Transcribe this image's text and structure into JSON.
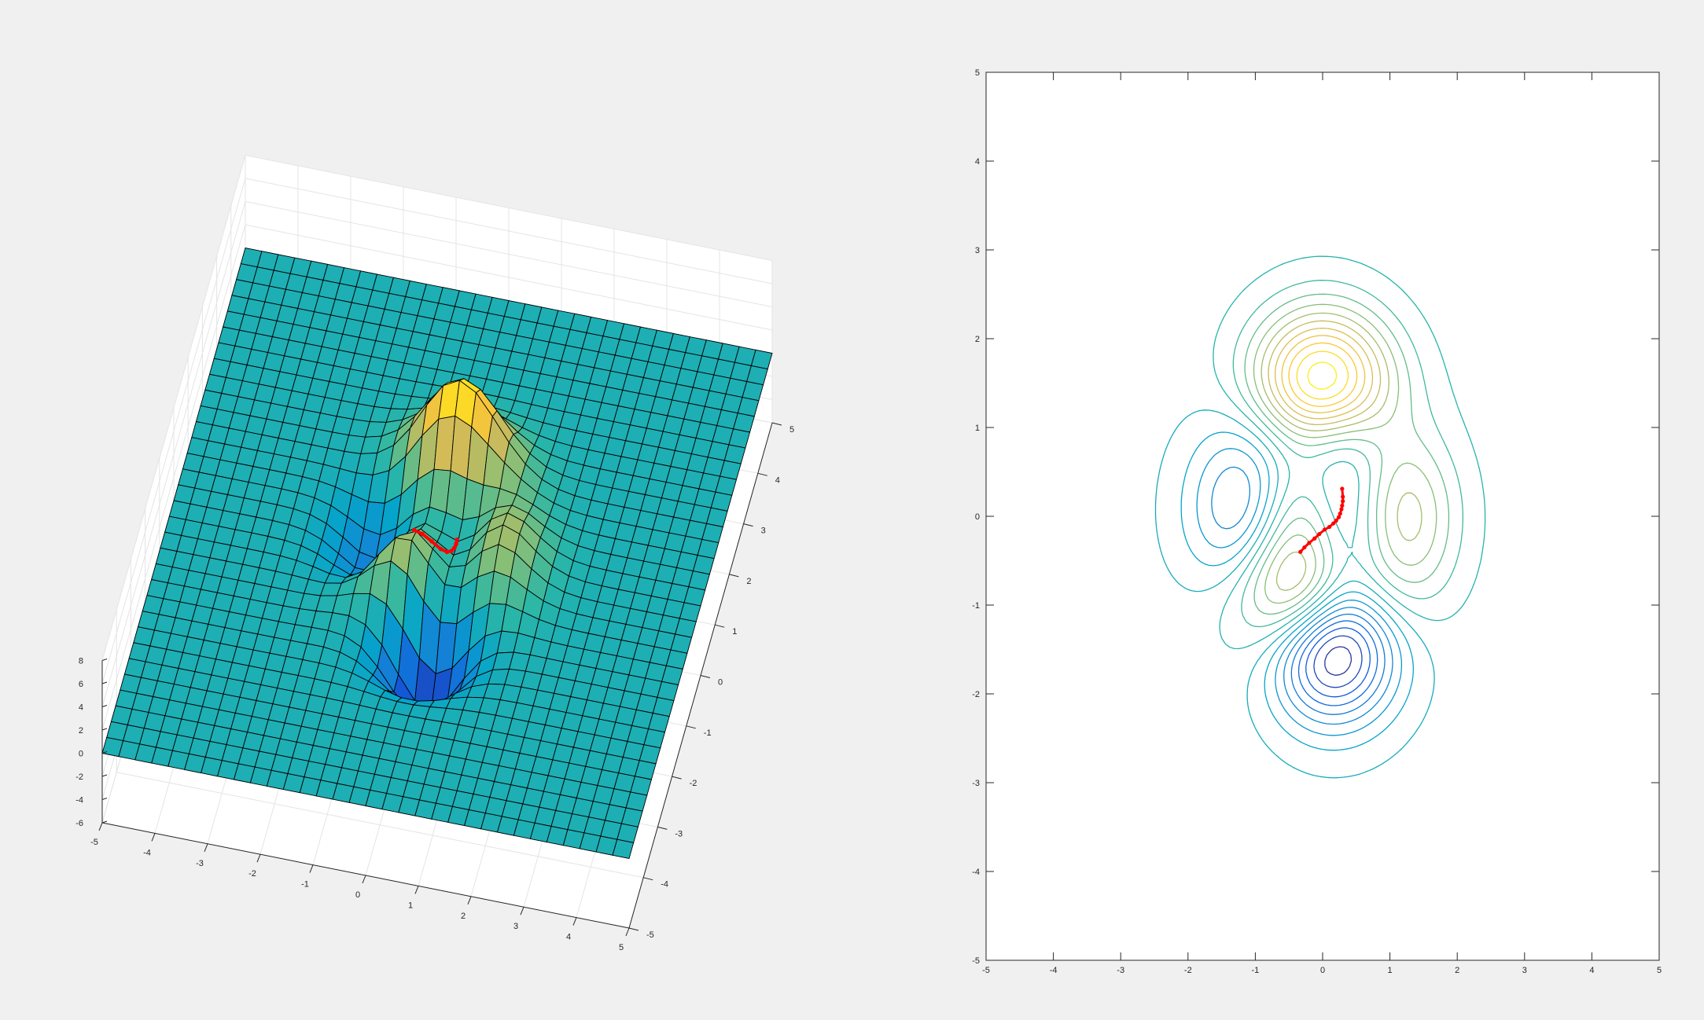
{
  "figure": {
    "background": "#f0f0f0"
  },
  "chart_data": [
    {
      "type": "surface",
      "title": "",
      "xlabel": "",
      "ylabel": "",
      "zlabel": "",
      "xlim": [
        -5,
        5
      ],
      "ylim": [
        -5,
        5
      ],
      "zlim": [
        -6,
        8
      ],
      "x_ticks": [
        -5,
        -4,
        -3,
        -2,
        -1,
        0,
        1,
        2,
        3,
        4,
        5
      ],
      "y_ticks": [
        -5,
        -4,
        -3,
        -2,
        -1,
        0,
        1,
        2,
        3,
        4,
        5
      ],
      "z_ticks": [
        -6,
        -4,
        -2,
        0,
        2,
        4,
        6,
        8
      ],
      "grid": true,
      "mesh": {
        "samples_per_axis": 33,
        "edge_color": "#000000"
      },
      "colormap": "parula",
      "colormap_stops": [
        "#352a87",
        "#0f5cdd",
        "#1481d6",
        "#06a4ca",
        "#2eb7a4",
        "#87bf77",
        "#d1bb59",
        "#fec832",
        "#f9fb0e"
      ],
      "surface_function": "peaks",
      "path": {
        "color": "#ff0000",
        "x": [
          -0.33,
          -0.2,
          -0.05,
          0.1,
          0.2,
          0.26,
          0.29,
          0.3,
          0.29
        ],
        "y": [
          -0.4,
          -0.3,
          -0.2,
          -0.12,
          -0.05,
          0.03,
          0.12,
          0.22,
          0.31
        ]
      }
    },
    {
      "type": "contour",
      "title": "",
      "xlabel": "",
      "ylabel": "",
      "xlim": [
        -5,
        5
      ],
      "ylim": [
        -5,
        5
      ],
      "x_ticks": [
        -5,
        -4,
        -3,
        -2,
        -1,
        0,
        1,
        2,
        3,
        4,
        5
      ],
      "y_ticks": [
        -5,
        -4,
        -3,
        -2,
        -1,
        0,
        1,
        2,
        3,
        4,
        5
      ],
      "grid": false,
      "levels": 20,
      "surface_function": "peaks",
      "colormap": "parula",
      "path": {
        "color": "#ff0000",
        "x": [
          -0.33,
          -0.27,
          -0.2,
          -0.12,
          -0.05,
          0.03,
          0.1,
          0.16,
          0.2,
          0.24,
          0.26,
          0.28,
          0.29,
          0.3,
          0.3,
          0.29
        ],
        "y": [
          -0.4,
          -0.35,
          -0.3,
          -0.25,
          -0.2,
          -0.15,
          -0.12,
          -0.08,
          -0.05,
          -0.01,
          0.03,
          0.08,
          0.12,
          0.17,
          0.22,
          0.31
        ]
      }
    }
  ]
}
